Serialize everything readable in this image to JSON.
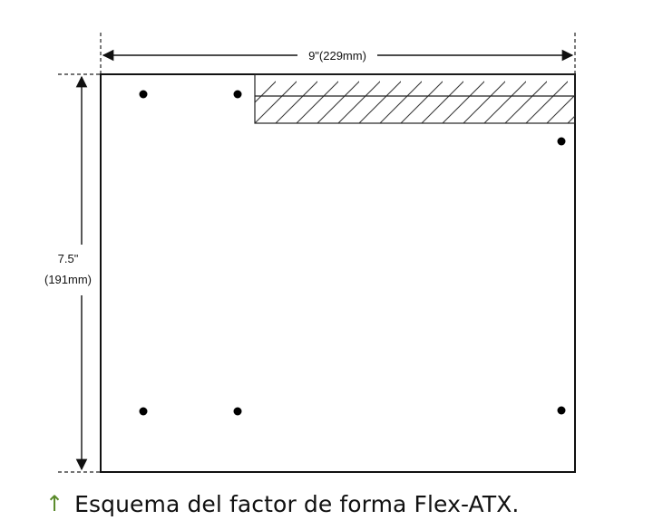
{
  "diagram": {
    "width_label": "9\"(229mm)",
    "height_label_inches": "7.5\"",
    "height_label_mm": "(191mm)"
  },
  "caption": {
    "arrow_icon": "up-arrow-icon",
    "arrow_color": "#5a8a2a",
    "text": "Esquema del factor de forma Flex-ATX."
  }
}
